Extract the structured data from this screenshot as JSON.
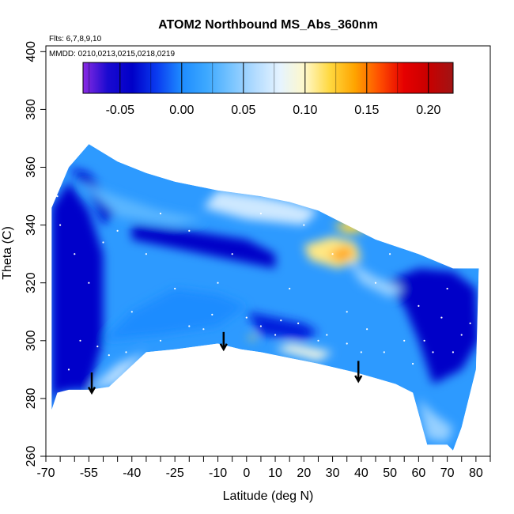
{
  "chart_data": {
    "type": "heatmap",
    "title": "ATOM2 Northbound MS_Abs_360nm",
    "notes": [
      "Flts: 6,7,8,9,10",
      "MMDD: 0210,0213,0215,0218,0219"
    ],
    "xlabel": "Latitude (deg N)",
    "ylabel": "Theta (C)",
    "xlim": [
      -70,
      85
    ],
    "ylim": [
      260,
      402
    ],
    "x_tick_labels": [
      "-70",
      "-55",
      "-40",
      "-25",
      "-10",
      "0",
      "10",
      "20",
      "30",
      "40",
      "50",
      "60",
      "70",
      "80"
    ],
    "x_ticks_labeled": [
      -70,
      -55,
      -40,
      -25,
      -10,
      0,
      10,
      20,
      30,
      40,
      50,
      60,
      70,
      80
    ],
    "x_ticks_minor": [
      -65,
      -60,
      -50,
      -45,
      -35,
      -30,
      -20,
      -15,
      -5,
      5,
      15,
      25,
      35,
      45,
      55,
      65,
      75,
      85
    ],
    "y_tick_labels": [
      "260",
      "280",
      "300",
      "320",
      "340",
      "360",
      "380",
      "400"
    ],
    "y_ticks": [
      260,
      280,
      300,
      320,
      340,
      360,
      380,
      400
    ],
    "colorbar": {
      "tick_labels": [
        "-0.05",
        "0.00",
        "0.05",
        "0.10",
        "0.15",
        "0.20"
      ],
      "ticks": [
        -0.05,
        0.0,
        0.05,
        0.1,
        0.15,
        0.2
      ],
      "range": [
        -0.08,
        0.22
      ],
      "stops": [
        {
          "v": -0.08,
          "c": "#8a2be2"
        },
        {
          "v": -0.06,
          "c": "#1a0ad0"
        },
        {
          "v": -0.04,
          "c": "#0000c8"
        },
        {
          "v": -0.02,
          "c": "#0a3cf0"
        },
        {
          "v": 0.0,
          "c": "#1e8cff"
        },
        {
          "v": 0.02,
          "c": "#3ca8ff"
        },
        {
          "v": 0.04,
          "c": "#78c4ff"
        },
        {
          "v": 0.06,
          "c": "#b4dcff"
        },
        {
          "v": 0.08,
          "c": "#e6f4ff"
        },
        {
          "v": 0.1,
          "c": "#fff8c8"
        },
        {
          "v": 0.12,
          "c": "#ffd840"
        },
        {
          "v": 0.14,
          "c": "#ffa500"
        },
        {
          "v": 0.16,
          "c": "#ff5000"
        },
        {
          "v": 0.18,
          "c": "#e60000"
        },
        {
          "v": 0.2,
          "c": "#c80000"
        },
        {
          "v": 0.22,
          "c": "#a01414"
        }
      ]
    },
    "data_envelope": [
      [
        -68,
        276
      ],
      [
        -66,
        282
      ],
      [
        -62,
        283
      ],
      [
        -55,
        283
      ],
      [
        -48,
        284
      ],
      [
        -35,
        296
      ],
      [
        -25,
        297
      ],
      [
        -10,
        299
      ],
      [
        -2,
        297
      ],
      [
        5,
        296
      ],
      [
        15,
        294
      ],
      [
        25,
        292
      ],
      [
        38,
        289
      ],
      [
        45,
        287
      ],
      [
        52,
        285
      ],
      [
        58,
        282
      ],
      [
        63,
        264
      ],
      [
        70,
        264
      ],
      [
        72,
        262
      ],
      [
        75,
        270
      ],
      [
        80,
        290
      ],
      [
        81,
        325
      ],
      [
        72,
        325
      ],
      [
        60,
        330
      ],
      [
        45,
        335
      ],
      [
        35,
        340
      ],
      [
        25,
        345
      ],
      [
        15,
        348
      ],
      [
        5,
        350
      ],
      [
        -10,
        352
      ],
      [
        -25,
        355
      ],
      [
        -35,
        358
      ],
      [
        -45,
        362
      ],
      [
        -55,
        368
      ],
      [
        -62,
        360
      ],
      [
        -68,
        346
      ]
    ],
    "heat_regions": [
      {
        "value": -0.045,
        "poly": [
          [
            -68,
            276
          ],
          [
            -66,
            282
          ],
          [
            -60,
            283
          ],
          [
            -55,
            283
          ],
          [
            -50,
            300
          ],
          [
            -50,
            330
          ],
          [
            -55,
            345
          ],
          [
            -62,
            355
          ],
          [
            -68,
            346
          ]
        ]
      },
      {
        "value": -0.04,
        "poly": [
          [
            -40,
            340
          ],
          [
            -20,
            338
          ],
          [
            0,
            335
          ],
          [
            10,
            330
          ],
          [
            10,
            325
          ],
          [
            -5,
            328
          ],
          [
            -25,
            332
          ],
          [
            -40,
            335
          ]
        ]
      },
      {
        "value": -0.03,
        "poly": [
          [
            0,
            310
          ],
          [
            20,
            306
          ],
          [
            25,
            303
          ],
          [
            20,
            300
          ],
          [
            5,
            302
          ]
        ]
      },
      {
        "value": -0.04,
        "poly": [
          [
            48,
            320
          ],
          [
            60,
            325
          ],
          [
            72,
            324
          ],
          [
            80,
            318
          ],
          [
            81,
            300
          ],
          [
            75,
            290
          ],
          [
            65,
            285
          ],
          [
            60,
            300
          ],
          [
            55,
            312
          ]
        ]
      },
      {
        "value": -0.035,
        "poly": [
          [
            -62,
            360
          ],
          [
            -55,
            352
          ],
          [
            -50,
            340
          ],
          [
            -45,
            345
          ],
          [
            -55,
            358
          ]
        ]
      },
      {
        "value": 0.0,
        "poly": [
          [
            -50,
            300
          ],
          [
            -40,
            310
          ],
          [
            -25,
            318
          ],
          [
            -10,
            316
          ],
          [
            0,
            312
          ],
          [
            -10,
            305
          ],
          [
            -30,
            302
          ]
        ]
      },
      {
        "value": 0.03,
        "poly": [
          [
            -58,
            355
          ],
          [
            -45,
            350
          ],
          [
            -30,
            345
          ],
          [
            -15,
            342
          ],
          [
            -25,
            340
          ],
          [
            -45,
            343
          ]
        ]
      },
      {
        "value": 0.07,
        "poly": [
          [
            -10,
            352
          ],
          [
            5,
            350
          ],
          [
            15,
            348
          ],
          [
            25,
            345
          ],
          [
            20,
            340
          ],
          [
            0,
            342
          ],
          [
            -15,
            346
          ]
        ]
      },
      {
        "value": 0.11,
        "poly": [
          [
            20,
            333
          ],
          [
            30,
            336
          ],
          [
            38,
            334
          ],
          [
            40,
            328
          ],
          [
            32,
            325
          ],
          [
            22,
            328
          ]
        ]
      },
      {
        "value": 0.14,
        "poly": [
          [
            28,
            330
          ],
          [
            35,
            333
          ],
          [
            38,
            330
          ],
          [
            33,
            327
          ]
        ]
      },
      {
        "value": 0.12,
        "poly": [
          [
            30,
            340
          ],
          [
            38,
            342
          ],
          [
            42,
            338
          ],
          [
            35,
            337
          ]
        ]
      },
      {
        "value": 0.05,
        "poly": [
          [
            35,
            328
          ],
          [
            45,
            322
          ],
          [
            55,
            318
          ],
          [
            50,
            315
          ],
          [
            40,
            320
          ]
        ]
      },
      {
        "value": 0.06,
        "poly": [
          [
            -55,
            283
          ],
          [
            -45,
            285
          ],
          [
            -35,
            296
          ],
          [
            -45,
            292
          ]
        ]
      },
      {
        "value": 0.09,
        "poly": [
          [
            10,
            297
          ],
          [
            25,
            293
          ],
          [
            30,
            296
          ],
          [
            15,
            299
          ]
        ]
      },
      {
        "value": 0.12,
        "poly": [
          [
            0,
            301
          ],
          [
            3,
            302
          ],
          [
            3,
            300
          ]
        ]
      },
      {
        "value": 0.05,
        "poly": [
          [
            63,
            266
          ],
          [
            70,
            265
          ],
          [
            72,
            270
          ],
          [
            65,
            275
          ],
          [
            60,
            280
          ]
        ]
      }
    ],
    "arrows": [
      {
        "x": -54,
        "y_top": 289,
        "y_tip": 282
      },
      {
        "x": -8,
        "y_top": 303,
        "y_tip": 297
      },
      {
        "x": 39,
        "y_top": 293,
        "y_tip": 286
      }
    ],
    "sample_points": [
      [
        -65,
        340
      ],
      [
        -60,
        330
      ],
      [
        -55,
        320
      ],
      [
        -50,
        334
      ],
      [
        -45,
        338
      ],
      [
        -40,
        310
      ],
      [
        -35,
        330
      ],
      [
        -30,
        344
      ],
      [
        -25,
        318
      ],
      [
        -20,
        338
      ],
      [
        -15,
        304
      ],
      [
        -10,
        320
      ],
      [
        -5,
        330
      ],
      [
        0,
        308
      ],
      [
        5,
        344
      ],
      [
        10,
        302
      ],
      [
        15,
        318
      ],
      [
        20,
        340
      ],
      [
        25,
        300
      ],
      [
        30,
        330
      ],
      [
        35,
        310
      ],
      [
        40,
        296
      ],
      [
        45,
        320
      ],
      [
        50,
        330
      ],
      [
        55,
        300
      ],
      [
        60,
        312
      ],
      [
        65,
        296
      ],
      [
        70,
        318
      ],
      [
        75,
        302
      ],
      [
        -62,
        290
      ],
      [
        -58,
        300
      ],
      [
        -52,
        298
      ],
      [
        -48,
        295
      ],
      [
        -42,
        296
      ],
      [
        -30,
        300
      ],
      [
        -20,
        305
      ],
      [
        -12,
        309
      ],
      [
        5,
        305
      ],
      [
        12,
        307
      ],
      [
        18,
        306
      ],
      [
        28,
        302
      ],
      [
        35,
        299
      ],
      [
        42,
        304
      ],
      [
        48,
        296
      ],
      [
        58,
        292
      ],
      [
        62,
        300
      ],
      [
        68,
        308
      ],
      [
        72,
        296
      ],
      [
        78,
        306
      ],
      [
        -66,
        350
      ]
    ]
  }
}
